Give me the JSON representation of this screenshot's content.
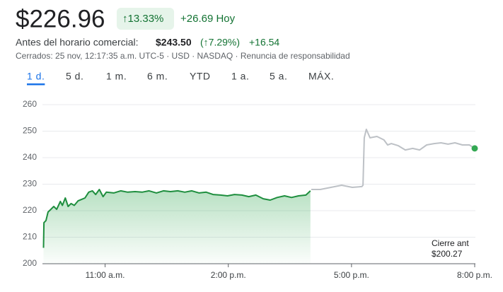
{
  "header": {
    "price": "$226.96",
    "change_pct": "↑13.33%",
    "change_abs": "+26.69 Hoy",
    "premarket_label": "Antes del horario comercial:",
    "premarket_price": "$243.50",
    "premarket_pct": "(↑7.29%)",
    "premarket_abs": "+16.54",
    "status": "Cerrados: 25 nov, 12:17:35 a.m. UTC-5 · USD · NASDAQ · Renuncia de responsabilidad"
  },
  "tabs": [
    "1 d.",
    "5 d.",
    "1 m.",
    "6 m.",
    "YTD",
    "1 a.",
    "5 a.",
    "MÁX."
  ],
  "selected_tab": 0,
  "chart_data": {
    "type": "line",
    "xlim": [
      9.5,
      20
    ],
    "xticks": [
      {
        "value": 11,
        "label": "11:00 a.m."
      },
      {
        "value": 14,
        "label": "2:00 p.m."
      },
      {
        "value": 17,
        "label": "5:00 p.m."
      },
      {
        "value": 20,
        "label": "8:00 p.m."
      }
    ],
    "ylim": [
      200,
      260
    ],
    "yticks": [
      200,
      210,
      220,
      230,
      240,
      250,
      260
    ],
    "grid": true,
    "series": [
      {
        "color": "#1e8e3e",
        "area": true,
        "x": [
          9.5,
          9.51,
          9.56,
          9.61,
          9.68,
          9.75,
          9.82,
          9.91,
          9.96,
          10.03,
          10.1,
          10.17,
          10.25,
          10.34,
          10.43,
          10.51,
          10.6,
          10.69,
          10.77,
          10.86,
          10.95,
          11.03,
          11.21,
          11.38,
          11.55,
          11.73,
          11.9,
          12.07,
          12.25,
          12.42,
          12.59,
          12.77,
          12.94,
          13.11,
          13.29,
          13.46,
          13.63,
          13.81,
          13.98,
          14.15,
          14.33,
          14.5,
          14.67,
          14.85,
          15.02,
          15.19,
          15.37,
          15.54,
          15.71,
          15.89,
          16.0
        ],
        "values": [
          206,
          215.5,
          216.3,
          219.5,
          220.5,
          221.6,
          220.5,
          223.5,
          222,
          224.8,
          221.6,
          222.7,
          222,
          223.7,
          224.3,
          224.8,
          227,
          227.5,
          226.1,
          228,
          225.3,
          227,
          226.7,
          227.5,
          227,
          227.2,
          227,
          227.5,
          226.7,
          227.5,
          227.2,
          227.5,
          227,
          227.5,
          226.7,
          227,
          226.1,
          225.9,
          225.6,
          226.1,
          225.9,
          225.3,
          225.9,
          224.5,
          224,
          225,
          225.6,
          225,
          225.6,
          225.9,
          227.5
        ]
      },
      {
        "color": "#bdc1c6",
        "marker_color": "#34a853",
        "x": [
          16.02,
          16.24,
          16.5,
          16.76,
          17.02,
          17.25,
          17.28,
          17.31,
          17.36,
          17.45,
          17.62,
          17.79,
          17.88,
          17.97,
          18.14,
          18.31,
          18.49,
          18.66,
          18.83,
          19.01,
          19.18,
          19.35,
          19.52,
          19.7,
          19.87,
          20.0
        ],
        "values": [
          228,
          228,
          228.8,
          229.6,
          228.8,
          229.1,
          229.6,
          247.5,
          250.7,
          247.5,
          248,
          246.7,
          244.8,
          245.3,
          244.5,
          242.9,
          243.5,
          242.9,
          244.8,
          245.3,
          245.6,
          245.1,
          245.6,
          244.8,
          244.8,
          243.5
        ]
      }
    ],
    "previous_close": {
      "label": "Cierre ant",
      "text": "$200.27"
    }
  }
}
